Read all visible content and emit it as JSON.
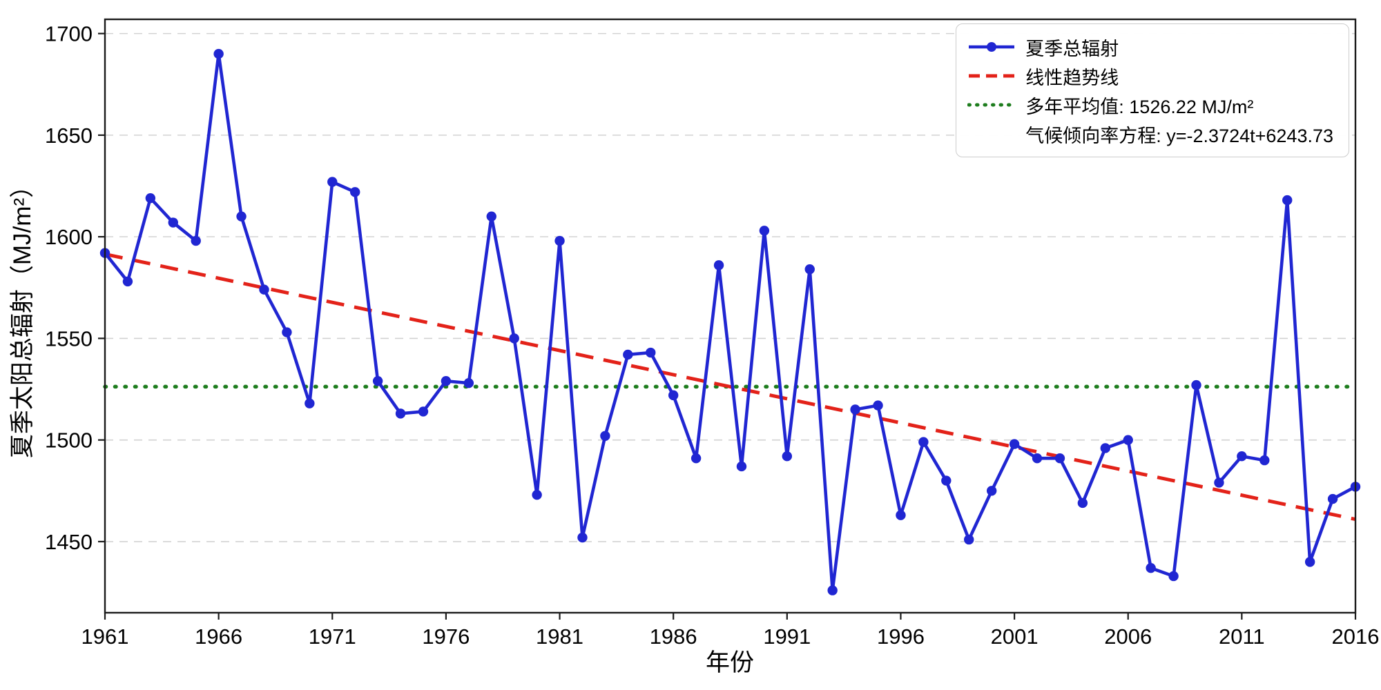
{
  "chart": {
    "xlabel": "年份",
    "ylabel": "夏季太阳总辐射（MJ/m²）",
    "legend": [
      {
        "label": "夏季总辐射",
        "style": "line-marker",
        "color": "#2026d2"
      },
      {
        "label": "线性趋势线",
        "style": "dashed",
        "color": "#e32219"
      },
      {
        "label": "多年平均值: 1526.22 MJ/m²",
        "style": "dotted",
        "color": "#1e7d1e"
      },
      {
        "label": "气候倾向率方程: y=-2.3724t+6243.73",
        "style": "none",
        "color": "#000000"
      }
    ]
  },
  "chart_data": {
    "type": "line",
    "title": "",
    "xlabel": "年份",
    "ylabel": "夏季太阳总辐射（MJ/m²）",
    "x": [
      1961,
      1962,
      1963,
      1964,
      1965,
      1966,
      1967,
      1968,
      1969,
      1970,
      1971,
      1972,
      1973,
      1974,
      1975,
      1976,
      1977,
      1978,
      1979,
      1980,
      1981,
      1982,
      1983,
      1984,
      1985,
      1986,
      1987,
      1988,
      1989,
      1990,
      1991,
      1992,
      1993,
      1994,
      1995,
      1996,
      1997,
      1998,
      1999,
      2000,
      2001,
      2002,
      2003,
      2004,
      2005,
      2006,
      2007,
      2008,
      2009,
      2010,
      2011,
      2012,
      2013,
      2014,
      2015,
      2016
    ],
    "series": [
      {
        "name": "夏季总辐射",
        "color": "#2026d2",
        "values": [
          1592,
          1578,
          1619,
          1607,
          1598,
          1690,
          1610,
          1574,
          1553,
          1518,
          1627,
          1622,
          1529,
          1513,
          1514,
          1529,
          1528,
          1610,
          1550,
          1473,
          1598,
          1452,
          1502,
          1542,
          1543,
          1522,
          1491,
          1586,
          1487,
          1603,
          1492,
          1584,
          1426,
          1515,
          1517,
          1463,
          1499,
          1480,
          1451,
          1475,
          1498,
          1491,
          1491,
          1469,
          1496,
          1500,
          1437,
          1433,
          1527,
          1479,
          1492,
          1490,
          1618,
          1440,
          1471,
          1477
        ]
      }
    ],
    "trend": {
      "name": "线性趋势线",
      "color": "#e32219",
      "slope": -2.3724,
      "intercept": 6243.73,
      "equation": "y=-2.3724t+6243.73"
    },
    "mean": {
      "name": "多年平均值",
      "value": 1526.22,
      "unit": "MJ/m²",
      "color": "#1e7d1e"
    },
    "equation_label": "气候倾向率方程: y=-2.3724t+6243.73",
    "xlim": [
      1961,
      2016
    ],
    "ylim": [
      1415,
      1707
    ],
    "xticks": [
      1961,
      1966,
      1971,
      1976,
      1981,
      1986,
      1991,
      1996,
      2001,
      2006,
      2011,
      2016
    ],
    "yticks": [
      1450,
      1500,
      1550,
      1600,
      1650,
      1700
    ],
    "grid": "horizontal-dashed",
    "legend_position": "top-right"
  }
}
